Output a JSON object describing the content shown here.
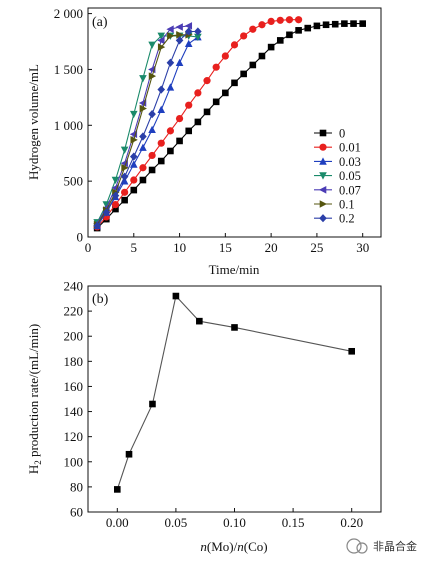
{
  "chart_data": [
    {
      "panel": "(a)",
      "type": "line",
      "xlabel": "Time/min",
      "ylabel": "Hydrogen volume/mL",
      "xlim": [
        0,
        32
      ],
      "ylim": [
        0,
        2050
      ],
      "xticks": [
        0,
        5,
        10,
        15,
        20,
        25,
        30
      ],
      "xtick_labels": [
        "0",
        "5",
        "10",
        "15",
        "20",
        "25",
        "30"
      ],
      "yticks": [
        0,
        500,
        1000,
        1500,
        2000
      ],
      "ytick_labels": [
        "0",
        "500",
        "1 000",
        "1 500",
        "2 000"
      ],
      "legend_position": "right",
      "grid": false,
      "series": [
        {
          "name": "0",
          "color": "#000000",
          "marker": "square",
          "x": [
            1,
            2,
            3,
            4,
            5,
            6,
            7,
            8,
            9,
            10,
            11,
            12,
            13,
            14,
            15,
            16,
            17,
            18,
            19,
            20,
            21,
            22,
            23,
            24,
            25,
            26,
            27,
            28,
            29,
            30
          ],
          "y": [
            80,
            160,
            250,
            330,
            420,
            510,
            600,
            680,
            770,
            860,
            950,
            1030,
            1120,
            1210,
            1290,
            1380,
            1460,
            1540,
            1620,
            1700,
            1760,
            1810,
            1850,
            1870,
            1890,
            1900,
            1905,
            1910,
            1910,
            1910
          ]
        },
        {
          "name": "0.01",
          "color": "#e8201e",
          "marker": "circle",
          "x": [
            1,
            2,
            3,
            4,
            5,
            6,
            7,
            8,
            9,
            10,
            11,
            12,
            13,
            14,
            15,
            16,
            17,
            18,
            19,
            20,
            21,
            22,
            23
          ],
          "y": [
            90,
            180,
            290,
            400,
            510,
            620,
            730,
            840,
            950,
            1060,
            1180,
            1290,
            1400,
            1520,
            1620,
            1720,
            1800,
            1860,
            1900,
            1930,
            1940,
            1945,
            1945
          ]
        },
        {
          "name": "0.03",
          "color": "#1f3fbf",
          "marker": "triangle-up",
          "x": [
            1,
            2,
            3,
            4,
            5,
            6,
            7,
            8,
            9,
            10,
            11,
            12
          ],
          "y": [
            100,
            220,
            360,
            500,
            650,
            800,
            960,
            1140,
            1340,
            1560,
            1730,
            1790
          ]
        },
        {
          "name": "0.05",
          "color": "#1a8a6a",
          "marker": "triangle-down",
          "x": [
            1,
            2,
            3,
            4,
            5,
            6,
            7,
            8,
            9,
            10,
            11,
            12
          ],
          "y": [
            130,
            290,
            510,
            780,
            1100,
            1420,
            1720,
            1800,
            1800,
            1800,
            1800,
            1790
          ]
        },
        {
          "name": "0.07",
          "color": "#4b3cb5",
          "marker": "triangle-left",
          "x": [
            1,
            2,
            3,
            4,
            5,
            6,
            7,
            8,
            9,
            10,
            11
          ],
          "y": [
            120,
            260,
            440,
            660,
            920,
            1200,
            1500,
            1760,
            1860,
            1880,
            1890
          ]
        },
        {
          "name": "0.1",
          "color": "#55550f",
          "marker": "triangle-right",
          "x": [
            1,
            2,
            3,
            4,
            5,
            6,
            7,
            8,
            9,
            10,
            11
          ],
          "y": [
            110,
            240,
            400,
            620,
            870,
            1150,
            1440,
            1700,
            1800,
            1810,
            1810
          ]
        },
        {
          "name": "0.2",
          "color": "#2b3fa8",
          "marker": "diamond",
          "x": [
            1,
            2,
            3,
            4,
            5,
            6,
            7,
            8,
            9,
            10,
            11,
            12
          ],
          "y": [
            100,
            220,
            370,
            540,
            720,
            900,
            1100,
            1320,
            1560,
            1760,
            1840,
            1840
          ]
        }
      ]
    },
    {
      "panel": "(b)",
      "type": "line",
      "xlabel": "n(Mo)/n(Co)",
      "ylabel": "H2 production rate/(mL/min)",
      "xlim": [
        -0.025,
        0.225
      ],
      "ylim": [
        60,
        240
      ],
      "xticks": [
        0.0,
        0.05,
        0.1,
        0.15,
        0.2
      ],
      "xtick_labels": [
        "0.00",
        "0.05",
        "0.10",
        "0.15",
        "0.20"
      ],
      "yticks": [
        60,
        80,
        100,
        120,
        140,
        160,
        180,
        200,
        220,
        240
      ],
      "ytick_labels": [
        "60",
        "80",
        "100",
        "120",
        "140",
        "160",
        "180",
        "200",
        "220",
        "240"
      ],
      "grid": false,
      "series": [
        {
          "x": [
            0.0,
            0.01,
            0.03,
            0.05,
            0.07,
            0.1,
            0.2
          ],
          "y": [
            78,
            106,
            146,
            232,
            212,
            207,
            188
          ],
          "color": "#000000",
          "marker": "square"
        }
      ]
    }
  ],
  "watermark": {
    "text": "非晶合金"
  }
}
